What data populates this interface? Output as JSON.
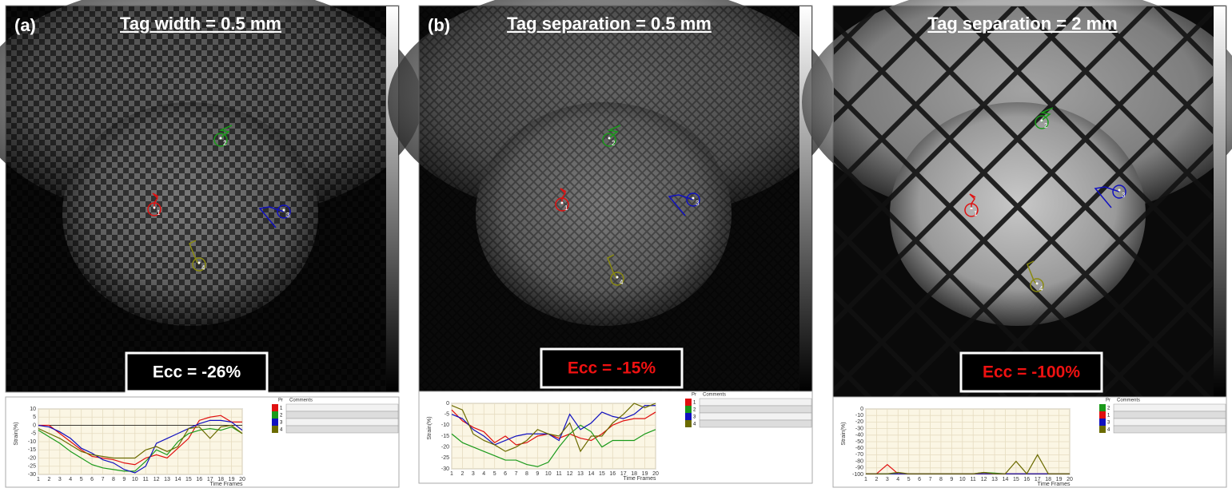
{
  "panels": [
    {
      "label": "(a)",
      "title": "Tag width = 0.5 mm",
      "ecc": "Ecc = -26%",
      "ecc_color": "#ffffff",
      "markers": [
        {
          "label": "1",
          "color": "#e01010"
        },
        {
          "label": "2",
          "color": "#1a9a1a"
        },
        {
          "label": "3",
          "color": "#1010c0"
        },
        {
          "label": "4",
          "color": "#8a8a10"
        }
      ],
      "legend_header": [
        "Pr",
        "Comments"
      ]
    },
    {
      "label": "(b)",
      "title": "Tag separation = 0.5 mm",
      "ecc": "Ecc = -15%",
      "ecc_color": "#ee1111",
      "markers": [
        {
          "label": "1",
          "color": "#e01010"
        },
        {
          "label": "2",
          "color": "#1a9a1a"
        },
        {
          "label": "3",
          "color": "#1010c0"
        },
        {
          "label": "4",
          "color": "#8a8a10"
        }
      ],
      "legend_header": [
        "Pr",
        "Comments"
      ]
    },
    {
      "title": "Tag separation = 2 mm",
      "ecc": "Ecc = -100%",
      "ecc_color": "#ee1111",
      "markers": [
        {
          "label": "1",
          "color": "#e01010"
        },
        {
          "label": "2",
          "color": "#1a9a1a"
        },
        {
          "label": "3",
          "color": "#1010c0"
        },
        {
          "label": "4",
          "color": "#8a8a10"
        }
      ],
      "legend_header": [
        "Pr",
        "Comments"
      ]
    }
  ],
  "chart_data": [
    {
      "type": "line",
      "ylabel": "Strain(%)",
      "xlabel": "Time Frames",
      "x": [
        1,
        2,
        3,
        4,
        5,
        6,
        7,
        8,
        9,
        10,
        11,
        12,
        13,
        14,
        15,
        16,
        17,
        18,
        19,
        20
      ],
      "xticks": [
        1,
        2,
        3,
        4,
        5,
        6,
        7,
        8,
        9,
        10,
        11,
        12,
        13,
        14,
        15,
        16,
        17,
        18,
        19,
        20
      ],
      "ylim": [
        -30,
        10
      ],
      "yticks": [
        -30,
        -25,
        -20,
        -15,
        -10,
        -5,
        0,
        5,
        10
      ],
      "zero_line": true,
      "series": [
        {
          "name": "1",
          "color": "#e01010",
          "values": [
            0,
            0,
            -5,
            -10,
            -15,
            -19,
            -20,
            -21,
            -23,
            -24,
            -20,
            -18,
            -20,
            -14,
            -8,
            3,
            5,
            6,
            2,
            2
          ]
        },
        {
          "name": "2",
          "color": "#1a9a1a",
          "values": [
            -3,
            -7,
            -11,
            -16,
            -20,
            -24,
            -26,
            -27,
            -28,
            -28,
            -22,
            -15,
            -18,
            -10,
            -5,
            -3,
            -2,
            -3,
            -1,
            -5
          ]
        },
        {
          "name": "3",
          "color": "#1010c0",
          "values": [
            0,
            -1,
            -4,
            -8,
            -14,
            -17,
            -21,
            -23,
            -27,
            -29,
            -25,
            -11,
            -8,
            -5,
            -2,
            1,
            3,
            3,
            2,
            -3
          ]
        },
        {
          "name": "4",
          "color": "#6b6b00",
          "values": [
            -2,
            -5,
            -8,
            -12,
            -16,
            -18,
            -19,
            -20,
            -20,
            -20,
            -15,
            -13,
            -16,
            -13,
            -2,
            -1,
            -8,
            -1,
            0,
            -5
          ]
        }
      ]
    },
    {
      "type": "line",
      "ylabel": "Strain(%)",
      "xlabel": "Time Frames",
      "x": [
        1,
        2,
        3,
        4,
        5,
        6,
        7,
        8,
        9,
        10,
        11,
        12,
        13,
        14,
        15,
        16,
        17,
        18,
        19,
        20
      ],
      "xticks": [
        1,
        2,
        3,
        4,
        5,
        6,
        7,
        8,
        9,
        10,
        11,
        12,
        13,
        14,
        15,
        16,
        17,
        18,
        19,
        20
      ],
      "ylim": [
        -30,
        0
      ],
      "yticks": [
        -30,
        -25,
        -20,
        -15,
        -10,
        -5,
        0
      ],
      "zero_line": false,
      "series": [
        {
          "name": "1",
          "color": "#e01010",
          "values": [
            -3,
            -8,
            -11,
            -13,
            -18,
            -15,
            -19,
            -18,
            -15,
            -14,
            -16,
            -14,
            -16,
            -17,
            -14,
            -10,
            -8,
            -7,
            -7,
            -4
          ]
        },
        {
          "name": "2",
          "color": "#1a9a1a",
          "values": [
            -14,
            -18,
            -20,
            -22,
            -24,
            -26,
            -26,
            -28,
            -29,
            -27,
            -20,
            -14,
            -10,
            -13,
            -20,
            -17,
            -17,
            -17,
            -14,
            -12
          ]
        },
        {
          "name": "3",
          "color": "#1010c0",
          "values": [
            -5,
            -7,
            -12,
            -15,
            -19,
            -17,
            -15,
            -14,
            -14,
            -14,
            -17,
            -5,
            -12,
            -9,
            -4,
            -6,
            -7,
            -5,
            -1,
            -1
          ]
        },
        {
          "name": "4",
          "color": "#6b6b00",
          "values": [
            -1,
            -3,
            -14,
            -17,
            -19,
            -22,
            -20,
            -17,
            -12,
            -14,
            -15,
            -9,
            -22,
            -15,
            -15,
            -9,
            -5,
            0,
            -2,
            0
          ]
        }
      ]
    },
    {
      "type": "line",
      "ylabel": "Strain(%)",
      "xlabel": "Time Frames",
      "x": [
        1,
        2,
        3,
        4,
        5,
        6,
        7,
        8,
        9,
        10,
        11,
        12,
        13,
        14,
        15,
        16,
        17,
        18,
        19,
        20
      ],
      "xticks": [
        1,
        2,
        3,
        4,
        5,
        6,
        7,
        8,
        9,
        10,
        11,
        12,
        13,
        14,
        15,
        16,
        17,
        18,
        19,
        20
      ],
      "ylim": [
        -100,
        0
      ],
      "yticks": [
        -100,
        -90,
        -80,
        -70,
        -60,
        -50,
        -40,
        -30,
        -20,
        -10,
        0
      ],
      "zero_line": false,
      "series": [
        {
          "name": "2",
          "color": "#1a9a1a",
          "values": [
            -99,
            -99,
            -99,
            -99,
            -99,
            -99,
            -99,
            -99,
            -99,
            -99,
            -99,
            -97,
            -98,
            -99,
            -99,
            -99,
            -99,
            -99,
            -99,
            -99
          ]
        },
        {
          "name": "1",
          "color": "#e01010",
          "values": [
            -99,
            -99,
            -85,
            -99,
            -99,
            -99,
            -99,
            -99,
            -99,
            -99,
            -99,
            -99,
            -99,
            -99,
            -99,
            -99,
            -99,
            -99,
            -99,
            -99
          ]
        },
        {
          "name": "3",
          "color": "#1010c0",
          "values": [
            -99,
            -99,
            -99,
            -99,
            -99,
            -99,
            -99,
            -99,
            -99,
            -99,
            -99,
            -99,
            -99,
            -99,
            -99,
            -99,
            -99,
            -99,
            -99,
            -99
          ]
        },
        {
          "name": "4",
          "color": "#6b6b00",
          "values": [
            -99,
            -99,
            -99,
            -97,
            -99,
            -99,
            -99,
            -99,
            -99,
            -99,
            -99,
            -97,
            -99,
            -99,
            -80,
            -99,
            -70,
            -99,
            -99,
            -99
          ]
        }
      ]
    }
  ]
}
